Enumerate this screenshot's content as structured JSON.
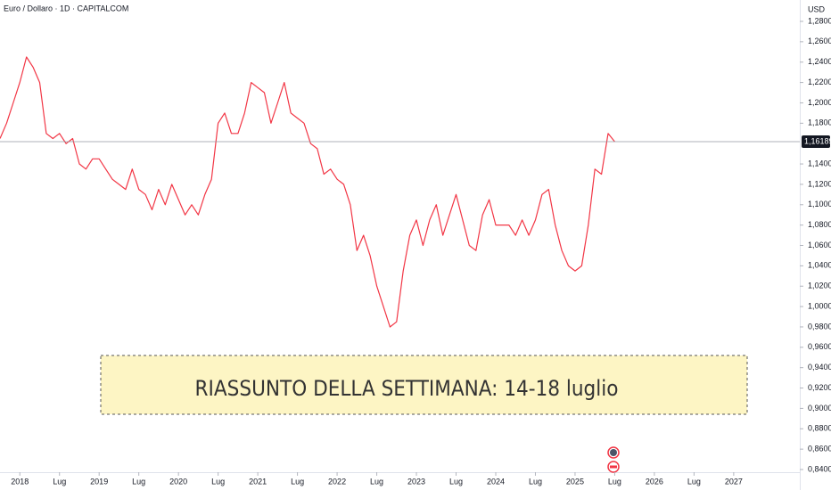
{
  "chart_data": {
    "type": "line",
    "title": "Euro / Dollaro · 1D · CAPITALCOM",
    "y_unit": "USD",
    "annotation": "RIASSUNTO DELLA SETTIMANA: 14-18 luglio",
    "x": [
      "2017-10",
      "2017-11",
      "2017-12",
      "2018-01",
      "2018-02",
      "2018-03",
      "2018-04",
      "2018-05",
      "2018-06",
      "2018-07",
      "2018-08",
      "2018-09",
      "2018-10",
      "2018-11",
      "2018-12",
      "2019-01",
      "2019-02",
      "2019-03",
      "2019-04",
      "2019-05",
      "2019-06",
      "2019-07",
      "2019-08",
      "2019-09",
      "2019-10",
      "2019-11",
      "2019-12",
      "2020-01",
      "2020-02",
      "2020-03",
      "2020-04",
      "2020-05",
      "2020-06",
      "2020-07",
      "2020-08",
      "2020-09",
      "2020-10",
      "2020-11",
      "2020-12",
      "2021-01",
      "2021-02",
      "2021-03",
      "2021-04",
      "2021-05",
      "2021-06",
      "2021-07",
      "2021-08",
      "2021-09",
      "2021-10",
      "2021-11",
      "2021-12",
      "2022-01",
      "2022-02",
      "2022-03",
      "2022-04",
      "2022-05",
      "2022-06",
      "2022-07",
      "2022-08",
      "2022-09",
      "2022-10",
      "2022-11",
      "2022-12",
      "2023-01",
      "2023-02",
      "2023-03",
      "2023-04",
      "2023-05",
      "2023-06",
      "2023-07",
      "2023-08",
      "2023-09",
      "2023-10",
      "2023-11",
      "2023-12",
      "2024-01",
      "2024-02",
      "2024-03",
      "2024-04",
      "2024-05",
      "2024-06",
      "2024-07",
      "2024-08",
      "2024-09",
      "2024-10",
      "2024-11",
      "2024-12",
      "2025-01",
      "2025-02",
      "2025-03",
      "2025-04",
      "2025-05",
      "2025-06",
      "2025-07"
    ],
    "series": [
      {
        "name": "EUR/USD",
        "color": "#f23645",
        "values": [
          1.165,
          1.18,
          1.2,
          1.22,
          1.245,
          1.235,
          1.22,
          1.17,
          1.165,
          1.17,
          1.16,
          1.165,
          1.14,
          1.135,
          1.145,
          1.145,
          1.135,
          1.125,
          1.12,
          1.115,
          1.135,
          1.115,
          1.11,
          1.095,
          1.115,
          1.1,
          1.12,
          1.105,
          1.09,
          1.1,
          1.09,
          1.11,
          1.125,
          1.18,
          1.19,
          1.17,
          1.17,
          1.19,
          1.22,
          1.215,
          1.21,
          1.18,
          1.2,
          1.22,
          1.19,
          1.185,
          1.18,
          1.16,
          1.155,
          1.13,
          1.135,
          1.125,
          1.12,
          1.1,
          1.055,
          1.07,
          1.05,
          1.02,
          1.0,
          0.98,
          0.985,
          1.035,
          1.07,
          1.085,
          1.06,
          1.085,
          1.1,
          1.07,
          1.09,
          1.11,
          1.085,
          1.06,
          1.055,
          1.09,
          1.105,
          1.08,
          1.08,
          1.08,
          1.07,
          1.085,
          1.07,
          1.085,
          1.11,
          1.115,
          1.08,
          1.055,
          1.04,
          1.035,
          1.04,
          1.08,
          1.135,
          1.13,
          1.17,
          1.16189
        ]
      }
    ],
    "last_price": {
      "value": 1.16189,
      "label": "1,16189"
    },
    "xlim": [
      "2017-10",
      "2027-11"
    ],
    "xticks": [
      {
        "value": "2018-01",
        "label": "2018"
      },
      {
        "value": "2018-07",
        "label": "Lug"
      },
      {
        "value": "2019-01",
        "label": "2019"
      },
      {
        "value": "2019-07",
        "label": "Lug"
      },
      {
        "value": "2020-01",
        "label": "2020"
      },
      {
        "value": "2020-07",
        "label": "Lug"
      },
      {
        "value": "2021-01",
        "label": "2021"
      },
      {
        "value": "2021-07",
        "label": "Lug"
      },
      {
        "value": "2022-01",
        "label": "2022"
      },
      {
        "value": "2022-07",
        "label": "Lug"
      },
      {
        "value": "2023-01",
        "label": "2023"
      },
      {
        "value": "2023-07",
        "label": "Lug"
      },
      {
        "value": "2024-01",
        "label": "2024"
      },
      {
        "value": "2024-07",
        "label": "Lug"
      },
      {
        "value": "2025-01",
        "label": "2025"
      },
      {
        "value": "2025-07",
        "label": "Lug"
      },
      {
        "value": "2026-01",
        "label": "2026"
      },
      {
        "value": "2026-07",
        "label": "Lug"
      },
      {
        "value": "2027-01",
        "label": "2027"
      }
    ],
    "ylim": [
      0.84,
      1.28
    ],
    "yticks": [
      {
        "value": 1.28,
        "label": "1,28000"
      },
      {
        "value": 1.26,
        "label": "1,26000"
      },
      {
        "value": 1.24,
        "label": "1,24000"
      },
      {
        "value": 1.22,
        "label": "1,22000"
      },
      {
        "value": 1.2,
        "label": "1,20000"
      },
      {
        "value": 1.18,
        "label": "1,18000"
      },
      {
        "value": 1.14,
        "label": "1,14000"
      },
      {
        "value": 1.12,
        "label": "1,12000"
      },
      {
        "value": 1.1,
        "label": "1,10000"
      },
      {
        "value": 1.08,
        "label": "1,08000"
      },
      {
        "value": 1.06,
        "label": "1,06000"
      },
      {
        "value": 1.04,
        "label": "1,04000"
      },
      {
        "value": 1.02,
        "label": "1,02000"
      },
      {
        "value": 1.0,
        "label": "1,00000"
      },
      {
        "value": 0.98,
        "label": "0,98000"
      },
      {
        "value": 0.96,
        "label": "0,96000"
      },
      {
        "value": 0.94,
        "label": "0,94000"
      },
      {
        "value": 0.92,
        "label": "0,92000"
      },
      {
        "value": 0.9,
        "label": "0,90000"
      },
      {
        "value": 0.88,
        "label": "0,88000"
      },
      {
        "value": 0.86,
        "label": "0,86000"
      },
      {
        "value": 0.84,
        "label": "0,84000"
      }
    ],
    "grid": false
  }
}
